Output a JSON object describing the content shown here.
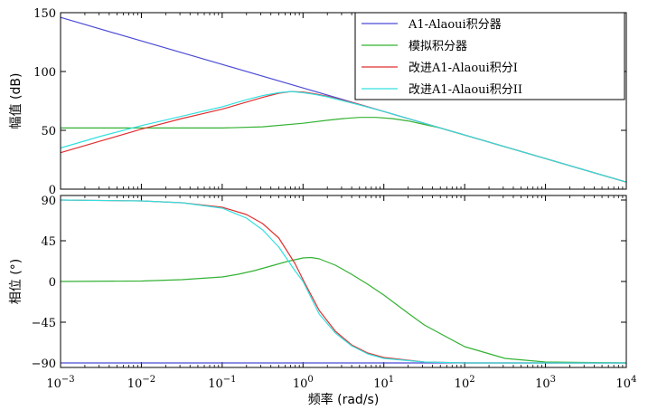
{
  "chart_data": [
    {
      "type": "line",
      "panel": "magnitude",
      "ylabel": "幅值 (dB)",
      "xscale": "log",
      "xlim_exp": [
        -3,
        4
      ],
      "ylim": [
        0,
        150
      ],
      "yticks": [
        0,
        50,
        100,
        150
      ],
      "legend_position": "top-right",
      "series": [
        {
          "name": "A1-Alaoui积分器",
          "color": "#4b4bd6",
          "x_exp": [
            -3,
            -2,
            -1,
            0,
            1,
            2,
            3,
            4
          ],
          "y": [
            146,
            126,
            106,
            86,
            66,
            46,
            26,
            6
          ]
        },
        {
          "name": "模拟积分器",
          "color": "#33b233",
          "x_exp": [
            -3,
            -2,
            -1.5,
            -1,
            -0.5,
            0,
            0.3,
            0.5,
            0.7,
            0.9,
            1.1,
            1.3,
            1.5,
            1.7,
            2,
            2.5,
            3,
            4
          ],
          "y": [
            52,
            52,
            52,
            52,
            53,
            56,
            58.5,
            60,
            61,
            61,
            60,
            58,
            55,
            52,
            46,
            36,
            26,
            6
          ]
        },
        {
          "name": "改进A1-Alaoui积分I",
          "color": "#e03030",
          "x_exp": [
            -3,
            -2.5,
            -2,
            -1.5,
            -1,
            -0.7,
            -0.5,
            -0.3,
            -0.15,
            0,
            0.15,
            0.3,
            0.5,
            0.7,
            1,
            1.5,
            2,
            3,
            4
          ],
          "y": [
            31,
            41,
            51,
            60,
            68,
            74,
            78,
            81.5,
            83,
            82.5,
            81,
            79,
            75.5,
            72,
            66,
            56,
            46,
            26,
            6
          ]
        },
        {
          "name": "改进A1-Alaoui积分II",
          "color": "#33e0e0",
          "x_exp": [
            -3,
            -2.5,
            -2,
            -1.5,
            -1,
            -0.7,
            -0.5,
            -0.3,
            -0.15,
            0,
            0.15,
            0.3,
            0.5,
            0.7,
            1,
            1.5,
            2,
            3,
            4
          ],
          "y": [
            35,
            45,
            54,
            62,
            70,
            76,
            79.5,
            82,
            83,
            82,
            80.5,
            78.5,
            75,
            71.5,
            66,
            56,
            46,
            26,
            6
          ]
        }
      ]
    },
    {
      "type": "line",
      "panel": "phase",
      "xlabel": "频率 (rad/s)",
      "ylabel": "相位 (°)",
      "xscale": "log",
      "xlim_exp": [
        -3,
        4
      ],
      "ylim": [
        -95,
        95
      ],
      "yticks": [
        -90,
        -45,
        0,
        45,
        90
      ],
      "series": [
        {
          "name": "A1-Alaoui积分器",
          "color": "#4b4bd6",
          "x_exp": [
            -3,
            4
          ],
          "y": [
            -90,
            -90
          ]
        },
        {
          "name": "模拟积分器",
          "color": "#33b233",
          "x_exp": [
            -3,
            -2,
            -1.5,
            -1,
            -0.8,
            -0.6,
            -0.4,
            -0.2,
            0,
            0.1,
            0.2,
            0.4,
            0.6,
            0.8,
            1,
            1.3,
            1.5,
            2,
            2.5,
            3,
            4
          ],
          "y": [
            0,
            0.5,
            2,
            5,
            8,
            12,
            17,
            22,
            26,
            26.5,
            25,
            18,
            8,
            -3,
            -15,
            -35,
            -48,
            -72,
            -85,
            -89,
            -90
          ]
        },
        {
          "name": "改进A1-Alaoui积分I",
          "color": "#e03030",
          "x_exp": [
            -3,
            -2,
            -1.5,
            -1,
            -0.7,
            -0.5,
            -0.3,
            -0.1,
            0,
            0.2,
            0.4,
            0.6,
            0.8,
            1,
            1.5,
            2,
            3,
            4
          ],
          "y": [
            90,
            89,
            87,
            82,
            74,
            64,
            48,
            20,
            2,
            -32,
            -55,
            -70,
            -79,
            -84,
            -89,
            -90,
            -90,
            -90
          ]
        },
        {
          "name": "改进A1-Alaoui积分II",
          "color": "#33e0e0",
          "x_exp": [
            -3,
            -2,
            -1.5,
            -1,
            -0.7,
            -0.5,
            -0.3,
            -0.1,
            0,
            0.2,
            0.4,
            0.6,
            0.8,
            1,
            1.5,
            2,
            3,
            4
          ],
          "y": [
            90,
            89,
            87,
            81,
            70,
            57,
            38,
            12,
            0,
            -36,
            -57,
            -71,
            -80,
            -85,
            -89,
            -90,
            -90,
            -90
          ]
        }
      ]
    }
  ],
  "x_tick_labels": [
    {
      "base": "10",
      "exp": "−3"
    },
    {
      "base": "10",
      "exp": "−2"
    },
    {
      "base": "10",
      "exp": "−1"
    },
    {
      "base": "10",
      "exp": "0"
    },
    {
      "base": "10",
      "exp": "1"
    },
    {
      "base": "10",
      "exp": "2"
    },
    {
      "base": "10",
      "exp": "3"
    },
    {
      "base": "10",
      "exp": "4"
    }
  ]
}
